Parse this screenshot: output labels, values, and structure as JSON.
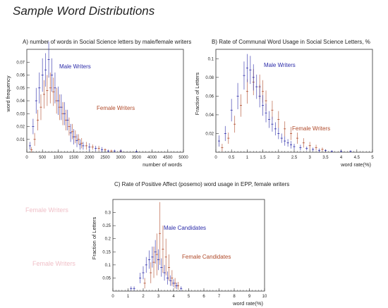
{
  "title": "Sample Word Distributions",
  "ghost_labels": [
    "Female Writers",
    "Female Writers"
  ],
  "colors": {
    "male": "#2a2aa8",
    "female": "#b04a2a",
    "axis": "#333333",
    "ghost": "#f0c0c8"
  },
  "chart_data": [
    {
      "type": "scatter",
      "title": "A) number of words in Social Science letters by male/female writers",
      "xlabel": "number of words",
      "ylabel": "word frequency",
      "xlim": [
        0,
        5000
      ],
      "ylim": [
        0,
        0.08
      ],
      "xticks": [
        "0",
        "500",
        "1000",
        "1500",
        "2000",
        "2500",
        "3000",
        "3500",
        "4000",
        "4500",
        "5000"
      ],
      "yticks": [
        "0.01",
        "0.02",
        "0.03",
        "0.04",
        "0.05",
        "0.06",
        "0.07"
      ],
      "series": [
        {
          "name": "Male Writers",
          "color": "male",
          "x": [
            100,
            200,
            300,
            400,
            500,
            600,
            700,
            800,
            900,
            1000,
            1100,
            1200,
            1300,
            1400,
            1500,
            1600,
            1700,
            1800,
            2000,
            2200,
            2400,
            2600,
            2800,
            3000,
            3500
          ],
          "y": [
            0.005,
            0.02,
            0.04,
            0.05,
            0.06,
            0.064,
            0.072,
            0.06,
            0.05,
            0.04,
            0.035,
            0.03,
            0.025,
            0.015,
            0.012,
            0.009,
            0.006,
            0.005,
            0.004,
            0.003,
            0.002,
            0.001,
            0.001,
            0.001,
            0.0005
          ],
          "err": [
            0.003,
            0.006,
            0.01,
            0.012,
            0.013,
            0.013,
            0.014,
            0.013,
            0.012,
            0.011,
            0.01,
            0.009,
            0.008,
            0.007,
            0.006,
            0.005,
            0.004,
            0.003,
            0.003,
            0.002,
            0.002,
            0.001,
            0.001,
            0.001,
            0.0005
          ]
        },
        {
          "name": "Female Writers",
          "color": "female",
          "x": [
            150,
            250,
            350,
            450,
            550,
            650,
            750,
            850,
            950,
            1050,
            1150,
            1250,
            1350,
            1450,
            1550,
            1650,
            1750,
            1900,
            2100,
            2300,
            2500,
            2700,
            3000
          ],
          "y": [
            0.002,
            0.01,
            0.025,
            0.035,
            0.045,
            0.048,
            0.05,
            0.047,
            0.04,
            0.035,
            0.03,
            0.025,
            0.02,
            0.016,
            0.012,
            0.01,
            0.007,
            0.005,
            0.004,
            0.003,
            0.002,
            0.001,
            0.0008
          ],
          "err": [
            0.002,
            0.005,
            0.008,
            0.01,
            0.011,
            0.012,
            0.012,
            0.011,
            0.01,
            0.01,
            0.009,
            0.008,
            0.007,
            0.006,
            0.005,
            0.004,
            0.004,
            0.003,
            0.002,
            0.002,
            0.001,
            0.001,
            0.0005
          ]
        }
      ]
    },
    {
      "type": "scatter",
      "title": "B)  Rate of Communal Word Usage in Social Science Letters, %",
      "xlabel": "word rate(%)",
      "ylabel": "Fraction of Letters",
      "xlim": [
        0,
        5
      ],
      "ylim": [
        0,
        0.11
      ],
      "xticks": [
        "0",
        "0.5",
        "1",
        "1.5",
        "2",
        "2.5",
        "3",
        "3.5",
        "4",
        "4.5",
        "5"
      ],
      "yticks": [
        "0.02",
        "0.04",
        "0.06",
        "0.08",
        "0.1"
      ],
      "series": [
        {
          "name": "Male Writers",
          "color": "male",
          "x": [
            0.1,
            0.3,
            0.5,
            0.7,
            0.9,
            1.0,
            1.1,
            1.2,
            1.3,
            1.4,
            1.5,
            1.6,
            1.7,
            1.8,
            1.9,
            2.0,
            2.1,
            2.2,
            2.3,
            2.4,
            2.5,
            2.7,
            2.9,
            3.1,
            3.3,
            3.5,
            3.7,
            4.0,
            4.3
          ],
          "y": [
            0.012,
            0.02,
            0.045,
            0.06,
            0.082,
            0.09,
            0.088,
            0.08,
            0.07,
            0.06,
            0.05,
            0.042,
            0.035,
            0.03,
            0.025,
            0.02,
            0.015,
            0.012,
            0.01,
            0.008,
            0.006,
            0.005,
            0.004,
            0.003,
            0.002,
            0.002,
            0.001,
            0.001,
            0.001
          ],
          "err": [
            0.006,
            0.008,
            0.012,
            0.014,
            0.015,
            0.015,
            0.015,
            0.014,
            0.013,
            0.012,
            0.011,
            0.01,
            0.009,
            0.008,
            0.007,
            0.006,
            0.005,
            0.005,
            0.004,
            0.004,
            0.003,
            0.003,
            0.002,
            0.002,
            0.002,
            0.001,
            0.001,
            0.001,
            0.001
          ]
        },
        {
          "name": "Female Writers",
          "color": "female",
          "x": [
            0.2,
            0.4,
            0.6,
            0.8,
            1.0,
            1.2,
            1.4,
            1.5,
            1.6,
            1.8,
            2.0,
            2.2,
            2.4,
            2.6,
            2.8,
            3.0,
            3.2,
            3.4
          ],
          "y": [
            0.005,
            0.015,
            0.03,
            0.05,
            0.065,
            0.075,
            0.07,
            0.065,
            0.055,
            0.045,
            0.035,
            0.025,
            0.02,
            0.015,
            0.01,
            0.007,
            0.005,
            0.003
          ],
          "err": [
            0.004,
            0.006,
            0.009,
            0.012,
            0.013,
            0.014,
            0.013,
            0.012,
            0.011,
            0.01,
            0.009,
            0.008,
            0.007,
            0.006,
            0.005,
            0.004,
            0.003,
            0.002
          ]
        }
      ]
    },
    {
      "type": "scatter",
      "title": "C) Rate of Positive Affect (posemo) word usage in EPP, female writers",
      "xlabel": "word rate(%)",
      "ylabel": "Fraction of Letters",
      "xlim": [
        0,
        10
      ],
      "ylim": [
        0,
        0.35
      ],
      "xticks": [
        "0",
        "1",
        "2",
        "3",
        "4",
        "5",
        "6",
        "7",
        "8",
        "9",
        "10"
      ],
      "yticks": [
        "0.05",
        "0.1",
        "0.15",
        "0.2",
        "0.25",
        "0.3"
      ],
      "series": [
        {
          "name": "Male Candidates",
          "color": "male",
          "x": [
            1.2,
            1.4,
            1.8,
            2.0,
            2.2,
            2.4,
            2.6,
            2.8,
            3.0,
            3.2,
            3.4,
            3.6,
            3.8,
            4.0,
            4.2,
            4.5
          ],
          "y": [
            0.01,
            0.01,
            0.05,
            0.07,
            0.1,
            0.12,
            0.13,
            0.15,
            0.12,
            0.09,
            0.07,
            0.05,
            0.04,
            0.03,
            0.02,
            0.01
          ],
          "err": [
            0.008,
            0.008,
            0.02,
            0.025,
            0.03,
            0.035,
            0.04,
            0.045,
            0.04,
            0.035,
            0.03,
            0.025,
            0.02,
            0.015,
            0.012,
            0.008
          ]
        },
        {
          "name": "Female Candidates",
          "color": "female",
          "x": [
            2.1,
            2.5,
            2.7,
            2.9,
            3.1,
            3.3,
            3.5,
            3.7,
            3.9,
            4.1,
            4.3
          ],
          "y": [
            0.03,
            0.07,
            0.11,
            0.14,
            0.22,
            0.16,
            0.13,
            0.09,
            0.05,
            0.03,
            0.02
          ],
          "err": [
            0.02,
            0.04,
            0.06,
            0.08,
            0.12,
            0.09,
            0.07,
            0.05,
            0.03,
            0.02,
            0.015
          ]
        }
      ]
    }
  ]
}
